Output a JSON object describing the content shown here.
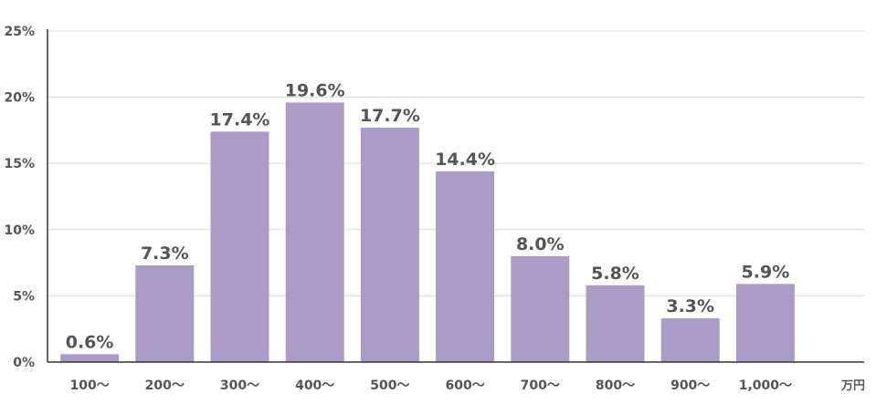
{
  "chart_data": {
    "type": "bar",
    "categories": [
      "100〜",
      "200〜",
      "300〜",
      "400〜",
      "500〜",
      "600〜",
      "700〜",
      "800〜",
      "900〜",
      "1,000〜"
    ],
    "values": [
      0.6,
      7.3,
      17.4,
      19.6,
      17.7,
      14.4,
      8.0,
      5.8,
      3.3,
      5.9
    ],
    "value_labels": [
      "0.6%",
      "7.3%",
      "17.4%",
      "19.6%",
      "17.7%",
      "14.4%",
      "8.0%",
      "5.8%",
      "3.3%",
      "5.9%"
    ],
    "x_unit": "万円",
    "ylim": [
      0,
      25
    ],
    "yticks": [
      0,
      5,
      10,
      15,
      20,
      25
    ],
    "ytick_labels": [
      "0%",
      "5%",
      "10%",
      "15%",
      "20%",
      "25%"
    ],
    "grid": true,
    "colors": {
      "bar": "#a99dc8",
      "grid": "#d9d9d9",
      "axis": "#333333",
      "text": "#555555"
    }
  }
}
